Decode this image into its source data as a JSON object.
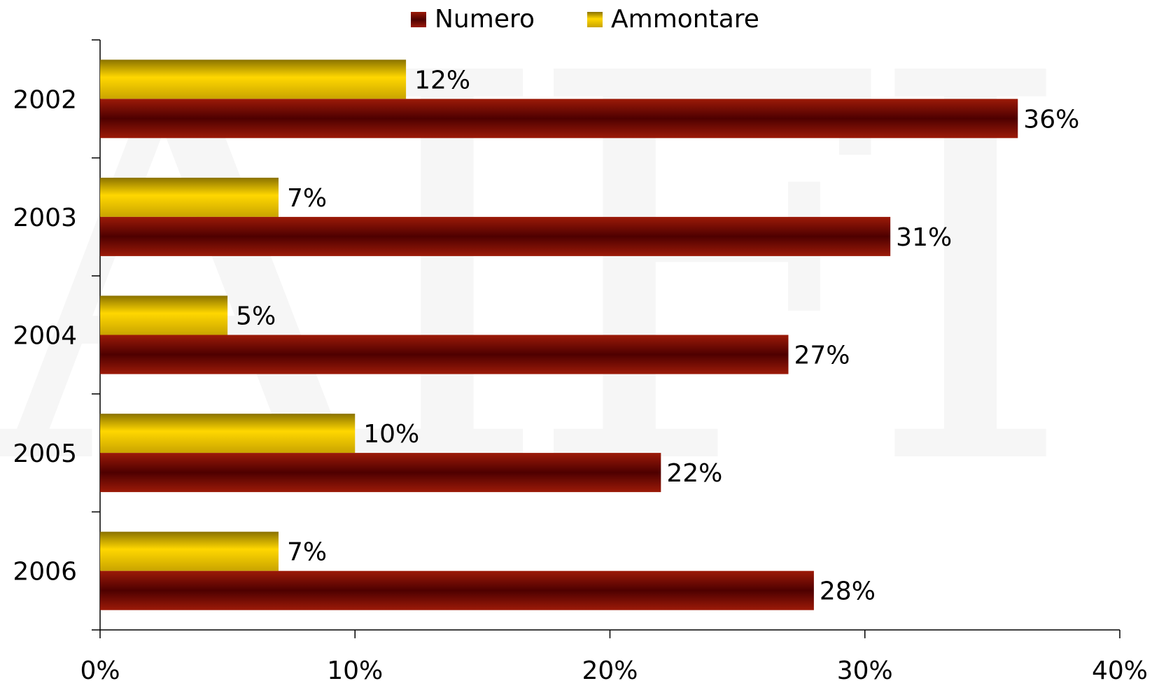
{
  "chart_data": {
    "type": "bar",
    "orientation": "horizontal",
    "categories": [
      "2002",
      "2003",
      "2004",
      "2005",
      "2006"
    ],
    "series": [
      {
        "name": "Numero",
        "values": [
          36,
          31,
          27,
          22,
          28
        ],
        "labels": [
          "36%",
          "31%",
          "27%",
          "22%",
          "28%"
        ]
      },
      {
        "name": "Ammontare",
        "values": [
          12,
          7,
          5,
          10,
          7
        ],
        "labels": [
          "12%",
          "7%",
          "5%",
          "10%",
          "7%"
        ]
      }
    ],
    "xlim": [
      0,
      40
    ],
    "xticks": [
      0,
      10,
      20,
      30,
      40
    ],
    "xtick_labels": [
      "0%",
      "10%",
      "20%",
      "30%",
      "40%"
    ],
    "title": "",
    "xlabel": "",
    "ylabel": "",
    "grid": false,
    "legend_position": "top-center"
  },
  "colors": {
    "numero": "#8B1A0A",
    "numero_dark": "#4A0000",
    "ammontare": "#F2C200",
    "ammontare_light": "#FFD700",
    "ammontare_dark": "#8A7000"
  }
}
